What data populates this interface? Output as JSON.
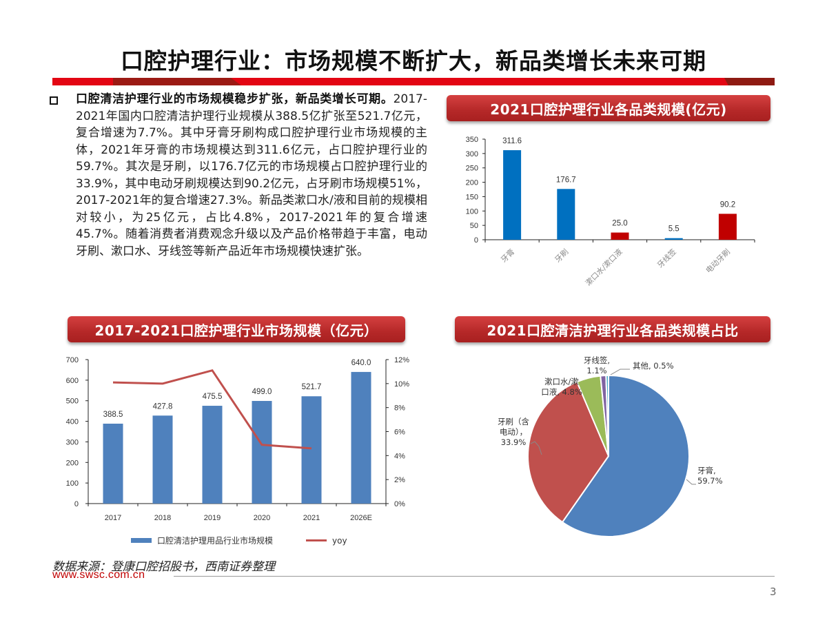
{
  "page": {
    "title": "口腔护理行业：市场规模不断扩大，新品类增长未来可期",
    "page_number": "3",
    "accent_color": "#e30613",
    "dark_accent_color": "#9b1a14"
  },
  "summary": {
    "bold_lead": "口腔清洁护理行业的市场规模稳步扩张，新品类增长可期。",
    "body": "2017-2021年国内口腔清洁护理行业规模从388.5亿扩张至521.7亿元，复合增速为7.7%。其中牙膏牙刷构成口腔护理行业市场规模的主体，2021年牙膏的市场规模达到311.6亿元，占口腔护理行业的59.7%。其次是牙刷，以176.7亿元的市场规模占口腔护理行业的33.9%，其中电动牙刷规模达到90.2亿元，占牙刷市场规模51%，2017-2021年的复合增速27.3%。新品类漱口水/液和目前的规模相对较小，为25亿元，占比4.8%，2017-2021年的复合增速45.7%。随着消费者消费观念升级以及产品价格带趋于丰富，电动牙刷、漱口水、牙线签等新产品近年市场规模快速扩张。"
  },
  "banners": {
    "category_bar": "2021口腔护理行业各品类规模(亿元)",
    "market_size": "2017-2021口腔护理行业市场规模（亿元）",
    "category_share": "2021口腔清洁护理行业各品类规模占比"
  },
  "chart_data": [
    {
      "type": "bar",
      "title": "2021口腔护理行业各品类规模(亿元)",
      "categories": [
        "牙膏",
        "牙刷",
        "漱口水/漱口液",
        "牙线签",
        "电动牙刷"
      ],
      "values": [
        311.6,
        176.7,
        25.0,
        5.5,
        90.2
      ],
      "value_labels": [
        "311.6",
        "176.7",
        "25.0",
        "5.5",
        "90.2"
      ],
      "colors": [
        "#0070c0",
        "#0070c0",
        "#c00000",
        "#0070c0",
        "#c00000"
      ],
      "xlabel": "",
      "ylabel": "",
      "ylim": [
        0,
        350
      ],
      "yticks": [
        0,
        50,
        100,
        150,
        200,
        250,
        300,
        350
      ],
      "grid": false,
      "x_label_rotation": -45
    },
    {
      "type": "bar+line",
      "title": "2017-2021口腔护理行业市场规模（亿元）",
      "categories": [
        "2017",
        "2018",
        "2019",
        "2020",
        "2021",
        "2026E"
      ],
      "series": [
        {
          "name": "口腔清洁护理用品行业市场规模",
          "type": "bar",
          "axis": "left",
          "color": "#4f81bd",
          "values": [
            388.5,
            427.8,
            475.5,
            499.0,
            521.7,
            640.0
          ],
          "value_labels": [
            "388.5",
            "427.8",
            "475.5",
            "499.0",
            "521.7",
            "640.0"
          ]
        },
        {
          "name": "yoy",
          "type": "line",
          "axis": "right",
          "color": "#c0504d",
          "values": [
            10.1,
            10.0,
            11.1,
            4.9,
            4.6,
            null
          ]
        }
      ],
      "ylim_left": [
        0,
        700
      ],
      "yticks_left": [
        0,
        100,
        200,
        300,
        400,
        500,
        600,
        700
      ],
      "ylim_right": [
        0,
        12
      ],
      "yticks_right": [
        "0%",
        "2%",
        "4%",
        "6%",
        "8%",
        "10%",
        "12%"
      ],
      "legend_position": "bottom",
      "grid": false
    },
    {
      "type": "pie",
      "title": "2021口腔清洁护理行业各品类规模占比",
      "slices": [
        {
          "label": "牙膏",
          "value": 59.7,
          "color": "#4f81bd",
          "text": [
            "牙膏,",
            "59.7%"
          ]
        },
        {
          "label": "牙刷（含电动）",
          "value": 33.9,
          "color": "#c0504d",
          "text": [
            "牙刷（含",
            "电动），",
            "33.9%"
          ]
        },
        {
          "label": "漱口水/漱口液",
          "value": 4.8,
          "color": "#9bbb59",
          "text": [
            "漱口水/漱",
            "口液, 4.8%"
          ]
        },
        {
          "label": "牙线签",
          "value": 1.1,
          "color": "#8064a2",
          "text": [
            "牙线签,",
            "1.1%"
          ]
        },
        {
          "label": "其他",
          "value": 0.5,
          "color": "#4bacc6",
          "text": [
            "其他, 0.5%"
          ]
        }
      ]
    }
  ],
  "footer": {
    "source": "数据来源：登康口腔招股书，西南证券整理",
    "website": "www.swsc.com.cn"
  }
}
